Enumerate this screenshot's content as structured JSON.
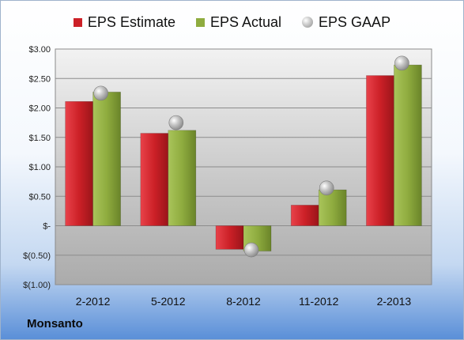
{
  "company": "Monsanto",
  "colors": {
    "estimate": "#cc2027",
    "actual": "#8fac3f",
    "gaap": "#b9b9b9"
  },
  "chart_data": {
    "type": "bar",
    "title": "",
    "xlabel": "",
    "ylabel": "",
    "categories": [
      "2-2012",
      "5-2012",
      "8-2012",
      "11-2012",
      "2-2013"
    ],
    "series": [
      {
        "name": "EPS Estimate",
        "type": "bar",
        "values": [
          2.11,
          1.57,
          -0.4,
          0.35,
          2.55
        ]
      },
      {
        "name": "EPS Actual",
        "type": "bar",
        "values": [
          2.27,
          1.62,
          -0.43,
          0.61,
          2.73
        ]
      },
      {
        "name": "EPS GAAP",
        "type": "scatter",
        "values": [
          2.25,
          1.75,
          -0.41,
          0.64,
          2.76
        ]
      }
    ],
    "ylim": [
      -1.0,
      3.0
    ],
    "yticks": [
      3.0,
      2.5,
      2.0,
      1.5,
      1.0,
      0.5,
      0,
      -0.5,
      -1.0
    ],
    "ytick_labels": [
      "$3.00",
      "$2.50",
      "$2.00",
      "$1.50",
      "$1.00",
      "$0.50",
      "$-",
      "$(0.50)",
      "$(1.00)"
    ],
    "grid": true,
    "legend": "top"
  }
}
